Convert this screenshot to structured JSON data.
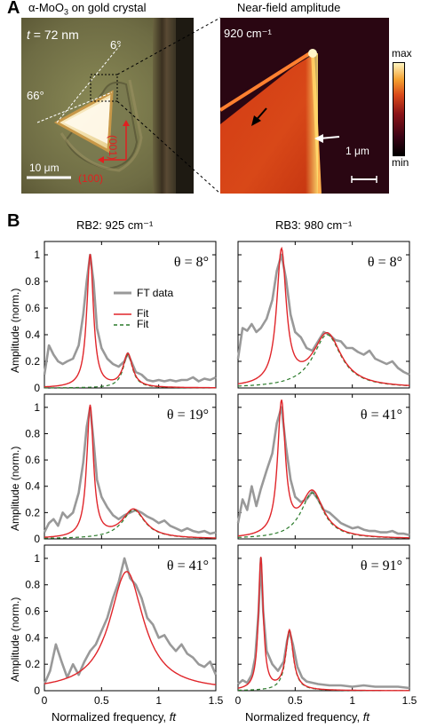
{
  "panel_a": {
    "letter": "A",
    "left": {
      "title_pre": "α-MoO",
      "title_sub": "3",
      "title_post": " on gold crystal",
      "thickness_var": "t",
      "thickness_rest": " = 72 nm",
      "angle_6": "6°",
      "angle_66": "66°",
      "scalebar": "10 μm",
      "axis_100": "(100)",
      "axis_001": "(001)"
    },
    "right": {
      "title": "Near-field amplitude",
      "wavenumber": "920 cm⁻¹",
      "scalebar": "1 μm",
      "colorbar_max": "max",
      "colorbar_min": "min"
    }
  },
  "panel_b": {
    "letter": "B",
    "col1_title": "RB2: 925 cm⁻¹",
    "col2_title": "RB3: 980 cm⁻¹",
    "ylabel": "Amplitude (norm.)",
    "xlabel_text": "Normalized frequency, ",
    "xlabel_var": "ft",
    "legend": {
      "ft": "FT data",
      "fit": "Fit",
      "fit2": "Fit"
    },
    "colors": {
      "ft": "#999999",
      "fit": "#e0252a",
      "fit2": "#2a7a2a"
    }
  },
  "chart_data": [
    {
      "type": "line",
      "panel": "RB2 row1",
      "annotation": "θ = 8°",
      "xlim": [
        0,
        1.5
      ],
      "ylim": [
        0,
        1.1
      ],
      "xticks": [
        "0",
        "0.5",
        "1",
        "1.5"
      ],
      "yticks": [
        "0",
        "0.2",
        "0.4",
        "0.6",
        "0.8",
        "1"
      ],
      "peaks": [
        {
          "center": 0.4,
          "amplitude": 1.0,
          "width": 0.035
        },
        {
          "center": 0.73,
          "amplitude": 0.25,
          "width": 0.05
        }
      ],
      "ft_series": {
        "x": [
          0,
          0.04,
          0.08,
          0.12,
          0.16,
          0.2,
          0.25,
          0.3,
          0.34,
          0.37,
          0.4,
          0.43,
          0.46,
          0.5,
          0.55,
          0.6,
          0.65,
          0.7,
          0.73,
          0.76,
          0.8,
          0.85,
          0.9,
          0.95,
          1,
          1.05,
          1.1,
          1.15,
          1.2,
          1.25,
          1.3,
          1.35,
          1.4,
          1.45,
          1.5
        ],
        "y": [
          0.1,
          0.32,
          0.25,
          0.2,
          0.18,
          0.2,
          0.22,
          0.32,
          0.55,
          0.8,
          1.0,
          0.8,
          0.45,
          0.3,
          0.22,
          0.18,
          0.16,
          0.2,
          0.26,
          0.2,
          0.12,
          0.1,
          0.06,
          0.05,
          0.06,
          0.05,
          0.06,
          0.05,
          0.06,
          0.06,
          0.08,
          0.05,
          0.07,
          0.06,
          0.08
        ]
      }
    },
    {
      "type": "line",
      "panel": "RB3 row1",
      "annotation": "θ = 8°",
      "xlim": [
        0,
        1.5
      ],
      "ylim": [
        0,
        1.1
      ],
      "xticks": [
        "0",
        "0.5",
        "1",
        "1.5"
      ],
      "yticks": [
        "0",
        "0.2",
        "0.4",
        "0.6",
        "0.8",
        "1"
      ],
      "peaks": [
        {
          "center": 0.38,
          "amplitude": 1.0,
          "width": 0.05
        },
        {
          "center": 0.78,
          "amplitude": 0.4,
          "width": 0.15
        }
      ],
      "ft_series": {
        "x": [
          0,
          0.04,
          0.08,
          0.12,
          0.16,
          0.2,
          0.25,
          0.3,
          0.34,
          0.38,
          0.42,
          0.46,
          0.5,
          0.55,
          0.6,
          0.65,
          0.7,
          0.75,
          0.8,
          0.85,
          0.9,
          0.95,
          1,
          1.05,
          1.1,
          1.15,
          1.2,
          1.25,
          1.3,
          1.35,
          1.4,
          1.45,
          1.5
        ],
        "y": [
          0.22,
          0.45,
          0.43,
          0.48,
          0.42,
          0.45,
          0.52,
          0.66,
          0.88,
          1.0,
          0.82,
          0.55,
          0.42,
          0.38,
          0.3,
          0.28,
          0.35,
          0.42,
          0.4,
          0.36,
          0.35,
          0.3,
          0.3,
          0.27,
          0.25,
          0.28,
          0.22,
          0.2,
          0.18,
          0.2,
          0.15,
          0.12,
          0.1
        ]
      }
    },
    {
      "type": "line",
      "panel": "RB2 row2",
      "annotation": "θ = 19°",
      "xlim": [
        0,
        1.5
      ],
      "ylim": [
        0,
        1.1
      ],
      "xticks": [
        "0",
        "0.5",
        "1",
        "1.5"
      ],
      "yticks": [
        "0",
        "0.2",
        "0.4",
        "0.6",
        "0.8",
        "1"
      ],
      "peaks": [
        {
          "center": 0.4,
          "amplitude": 1.0,
          "width": 0.035
        },
        {
          "center": 0.78,
          "amplitude": 0.22,
          "width": 0.12
        }
      ],
      "ft_series": {
        "x": [
          0,
          0.04,
          0.08,
          0.12,
          0.16,
          0.2,
          0.25,
          0.3,
          0.34,
          0.37,
          0.4,
          0.43,
          0.46,
          0.5,
          0.55,
          0.6,
          0.65,
          0.7,
          0.75,
          0.8,
          0.85,
          0.9,
          0.95,
          1,
          1.05,
          1.1,
          1.15,
          1.2,
          1.25,
          1.3,
          1.35,
          1.4,
          1.45,
          1.5
        ],
        "y": [
          0.05,
          0.12,
          0.15,
          0.1,
          0.2,
          0.16,
          0.2,
          0.35,
          0.58,
          0.85,
          1.0,
          0.75,
          0.45,
          0.32,
          0.24,
          0.18,
          0.15,
          0.18,
          0.2,
          0.22,
          0.2,
          0.17,
          0.15,
          0.12,
          0.14,
          0.1,
          0.08,
          0.06,
          0.08,
          0.06,
          0.05,
          0.06,
          0.04,
          0.05
        ]
      }
    },
    {
      "type": "line",
      "panel": "RB3 row2",
      "annotation": "θ = 41°",
      "xlim": [
        0,
        1.5
      ],
      "ylim": [
        0,
        1.1
      ],
      "xticks": [
        "0",
        "0.5",
        "1",
        "1.5"
      ],
      "yticks": [
        "0",
        "0.2",
        "0.4",
        "0.6",
        "0.8",
        "1"
      ],
      "peaks": [
        {
          "center": 0.38,
          "amplitude": 1.0,
          "width": 0.04
        },
        {
          "center": 0.65,
          "amplitude": 0.35,
          "width": 0.12
        }
      ],
      "ft_series": {
        "x": [
          0,
          0.04,
          0.08,
          0.12,
          0.16,
          0.2,
          0.25,
          0.3,
          0.34,
          0.38,
          0.42,
          0.46,
          0.5,
          0.55,
          0.6,
          0.65,
          0.7,
          0.75,
          0.8,
          0.85,
          0.9,
          0.95,
          1,
          1.05,
          1.1,
          1.15,
          1.2,
          1.25,
          1.3,
          1.35,
          1.4,
          1.45,
          1.5
        ],
        "y": [
          0.12,
          0.3,
          0.22,
          0.4,
          0.25,
          0.38,
          0.52,
          0.65,
          0.88,
          1.0,
          0.7,
          0.45,
          0.32,
          0.28,
          0.3,
          0.36,
          0.3,
          0.22,
          0.2,
          0.16,
          0.12,
          0.1,
          0.08,
          0.09,
          0.07,
          0.06,
          0.06,
          0.05,
          0.05,
          0.06,
          0.04,
          0.04,
          0.03
        ]
      }
    },
    {
      "type": "line",
      "panel": "RB2 row3",
      "annotation": "θ = 41°",
      "xlim": [
        0,
        1.5
      ],
      "ylim": [
        0,
        1.1
      ],
      "xticks": [
        "0",
        "0.5",
        "1",
        "1.5"
      ],
      "yticks": [
        "0",
        "0.2",
        "0.4",
        "0.6",
        "0.8",
        "1"
      ],
      "peaks": [
        {
          "center": 0.72,
          "amplitude": 0.9,
          "width": 0.18
        }
      ],
      "ft_series": {
        "x": [
          0,
          0.05,
          0.1,
          0.15,
          0.2,
          0.25,
          0.3,
          0.35,
          0.4,
          0.45,
          0.5,
          0.55,
          0.6,
          0.65,
          0.7,
          0.75,
          0.8,
          0.85,
          0.9,
          0.95,
          1,
          1.05,
          1.1,
          1.15,
          1.2,
          1.25,
          1.3,
          1.35,
          1.4,
          1.45,
          1.5
        ],
        "y": [
          0.05,
          0.15,
          0.35,
          0.22,
          0.1,
          0.2,
          0.12,
          0.22,
          0.3,
          0.35,
          0.45,
          0.55,
          0.7,
          0.82,
          1.0,
          0.85,
          0.8,
          0.7,
          0.55,
          0.5,
          0.4,
          0.42,
          0.35,
          0.3,
          0.35,
          0.28,
          0.25,
          0.2,
          0.18,
          0.22,
          0.12
        ]
      }
    },
    {
      "type": "line",
      "panel": "RB3 row3",
      "annotation": "θ = 91°",
      "xlim": [
        0,
        1.5
      ],
      "ylim": [
        0,
        1.1
      ],
      "xticks": [
        "0",
        "0.5",
        "1",
        "1.5"
      ],
      "yticks": [
        "0",
        "0.2",
        "0.4",
        "0.6",
        "0.8",
        "1"
      ],
      "peaks": [
        {
          "center": 0.2,
          "amplitude": 1.0,
          "width": 0.025
        },
        {
          "center": 0.45,
          "amplitude": 0.45,
          "width": 0.04
        }
      ],
      "ft_series": {
        "x": [
          0,
          0.04,
          0.08,
          0.12,
          0.15,
          0.18,
          0.2,
          0.22,
          0.25,
          0.3,
          0.35,
          0.4,
          0.43,
          0.45,
          0.48,
          0.52,
          0.56,
          0.6,
          0.7,
          0.8,
          0.9,
          1,
          1.1,
          1.2,
          1.3,
          1.4,
          1.5
        ],
        "y": [
          0.05,
          0.08,
          0.06,
          0.12,
          0.25,
          0.6,
          1.0,
          0.6,
          0.3,
          0.2,
          0.15,
          0.22,
          0.38,
          0.45,
          0.35,
          0.18,
          0.1,
          0.07,
          0.05,
          0.04,
          0.04,
          0.03,
          0.04,
          0.03,
          0.03,
          0.03,
          0.02
        ]
      }
    }
  ]
}
